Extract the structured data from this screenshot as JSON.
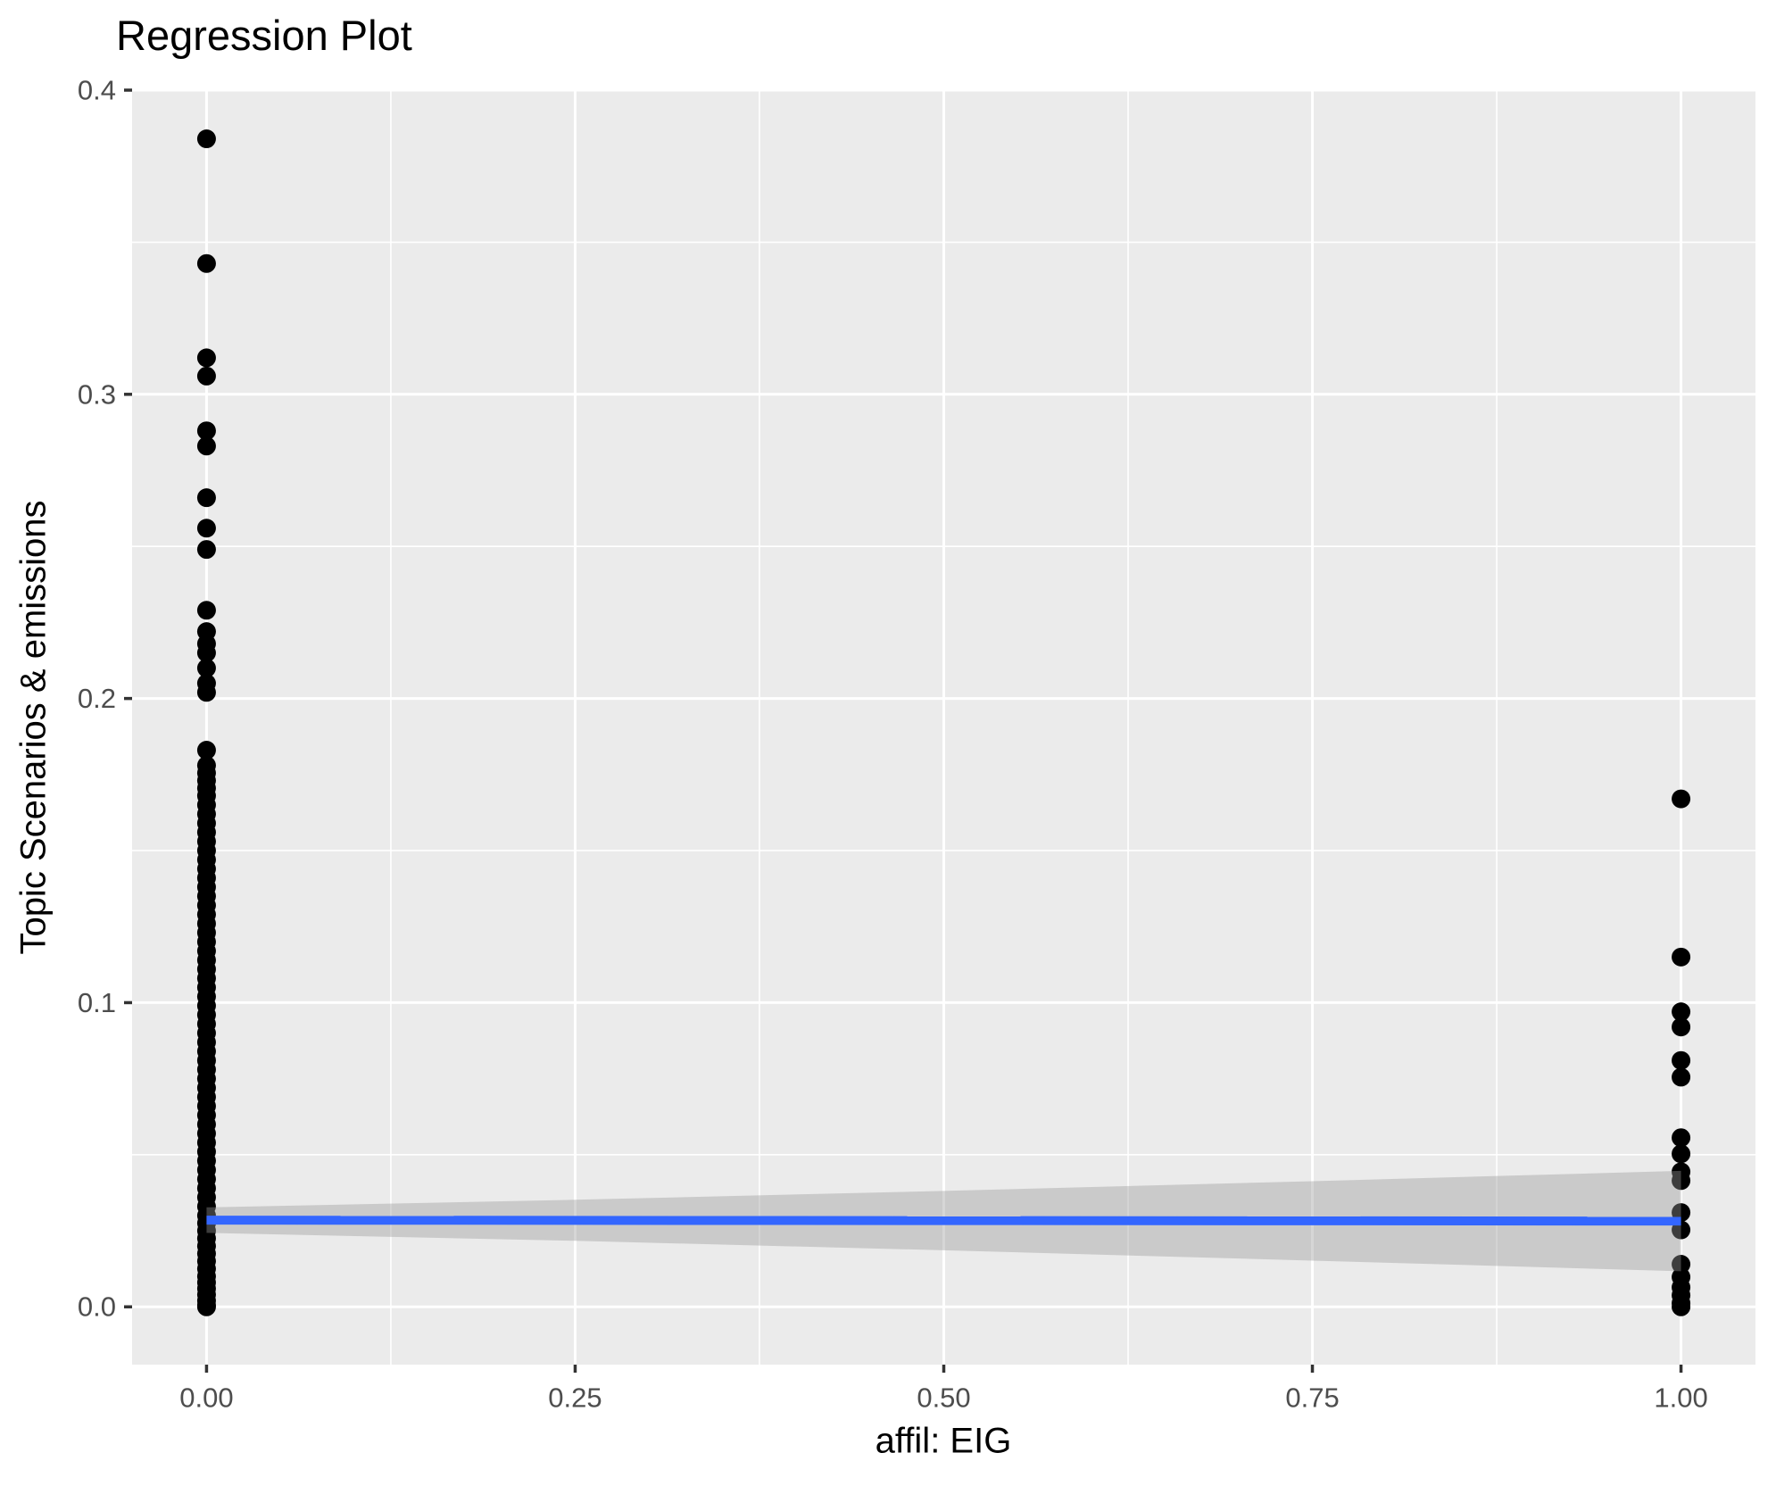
{
  "chart_data": {
    "type": "scatter",
    "title": "Regression Plot",
    "xlabel": "affil: EIG",
    "ylabel": "Topic Scenarios & emissions",
    "xlim": [
      -0.0505,
      1.0505
    ],
    "ylim": [
      -0.019,
      0.4
    ],
    "x_ticks": [
      0.0,
      0.25,
      0.5,
      0.75,
      1.0
    ],
    "x_tick_labels": [
      "0.00",
      "0.25",
      "0.50",
      "0.75",
      "1.00"
    ],
    "y_ticks": [
      0.0,
      0.1,
      0.2,
      0.3,
      0.4
    ],
    "y_tick_labels": [
      "0.0",
      "0.1",
      "0.2",
      "0.3",
      "0.4"
    ],
    "x_minor_ticks": [
      0.125,
      0.375,
      0.625,
      0.875
    ],
    "y_minor_ticks": [
      0.05,
      0.15,
      0.25,
      0.35
    ],
    "grid": "major and minor white gridlines on gray panel",
    "legend": "none",
    "series": [
      {
        "name": "observations at affil EIG = 0",
        "x": 0,
        "y": [
          0.384,
          0.343,
          0.312,
          0.306,
          0.288,
          0.283,
          0.266,
          0.256,
          0.249,
          0.229,
          0.222,
          0.218,
          0.215,
          0.21,
          0.205,
          0.202,
          0.183,
          0.178,
          0.1755,
          0.173,
          0.1705,
          0.168,
          0.165,
          0.162,
          0.159,
          0.156,
          0.153,
          0.15,
          0.147,
          0.144,
          0.141,
          0.138,
          0.135,
          0.132,
          0.129,
          0.126,
          0.123,
          0.12,
          0.117,
          0.114,
          0.111,
          0.108,
          0.105,
          0.102,
          0.099,
          0.096,
          0.093,
          0.09,
          0.087,
          0.084,
          0.081,
          0.078,
          0.075,
          0.072,
          0.069,
          0.066,
          0.063,
          0.06,
          0.057,
          0.054,
          0.051,
          0.048,
          0.045,
          0.042,
          0.039,
          0.036,
          0.033,
          0.03,
          0.0275,
          0.025,
          0.0225,
          0.02,
          0.0175,
          0.015,
          0.0125,
          0.01,
          0.008,
          0.006,
          0.004,
          0.002,
          0.0005,
          0.0
        ]
      },
      {
        "name": "observations at affil EIG = 1",
        "x": 1,
        "y": [
          0.167,
          0.115,
          0.097,
          0.092,
          0.081,
          0.0755,
          0.0556,
          0.0503,
          0.0444,
          0.0415,
          0.031,
          0.0253,
          0.014,
          0.0098,
          0.0064,
          0.0038,
          0.0012,
          0.0
        ]
      }
    ],
    "regression_line": {
      "x0": 0,
      "y0": 0.0285,
      "x1": 1,
      "y1": 0.0282
    },
    "confidence_band": {
      "x": [
        0.0,
        0.25,
        0.5,
        0.75,
        1.0
      ],
      "upper": [
        0.0327,
        0.0352,
        0.0381,
        0.0413,
        0.0447
      ],
      "lower": [
        0.0243,
        0.0217,
        0.0186,
        0.0152,
        0.0117
      ]
    },
    "colors": {
      "point": "#000000",
      "panel_background": "#EBEBEB",
      "gridline": "#FFFFFF",
      "regression_line": "#3366FF",
      "confidence_band": "#999999",
      "tick_text": "#4D4D4D",
      "tick_mark": "#333333",
      "title_text": "#000000"
    }
  }
}
